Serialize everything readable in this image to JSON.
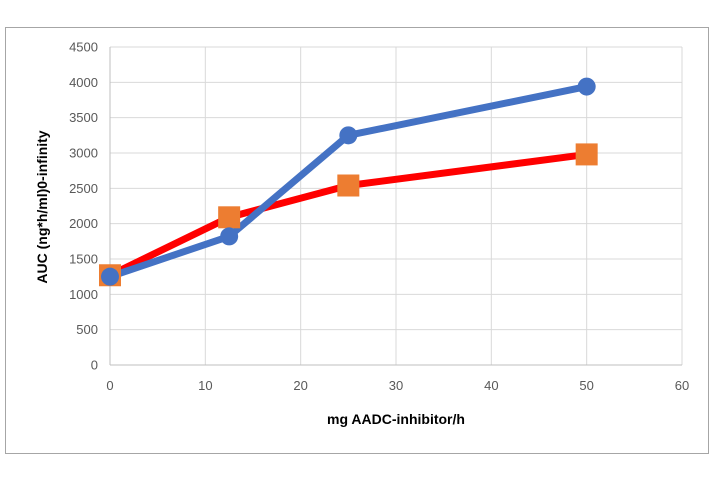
{
  "chart_data": {
    "type": "line",
    "title": "",
    "xlabel": "mg AADC-inhibitor/h",
    "ylabel": "AUC (ng*h/ml)0-infinity",
    "xlim": [
      0,
      60
    ],
    "ylim": [
      0,
      4500
    ],
    "xticks": [
      0,
      10,
      20,
      30,
      40,
      50,
      60
    ],
    "yticks": [
      0,
      500,
      1000,
      1500,
      2000,
      2500,
      3000,
      3500,
      4000,
      4500
    ],
    "grid": true,
    "legend": "none",
    "series": [
      {
        "color": "#ff0000",
        "marker": "square",
        "marker_color": "#ed7d31",
        "x": [
          0,
          12.5,
          25,
          50
        ],
        "y": [
          1270,
          2090,
          2540,
          2980
        ]
      },
      {
        "color": "#4472c4",
        "marker": "circle",
        "marker_color": "#4472c4",
        "x": [
          0,
          12.5,
          25,
          50
        ],
        "y": [
          1250,
          1820,
          3250,
          3940
        ]
      }
    ]
  }
}
